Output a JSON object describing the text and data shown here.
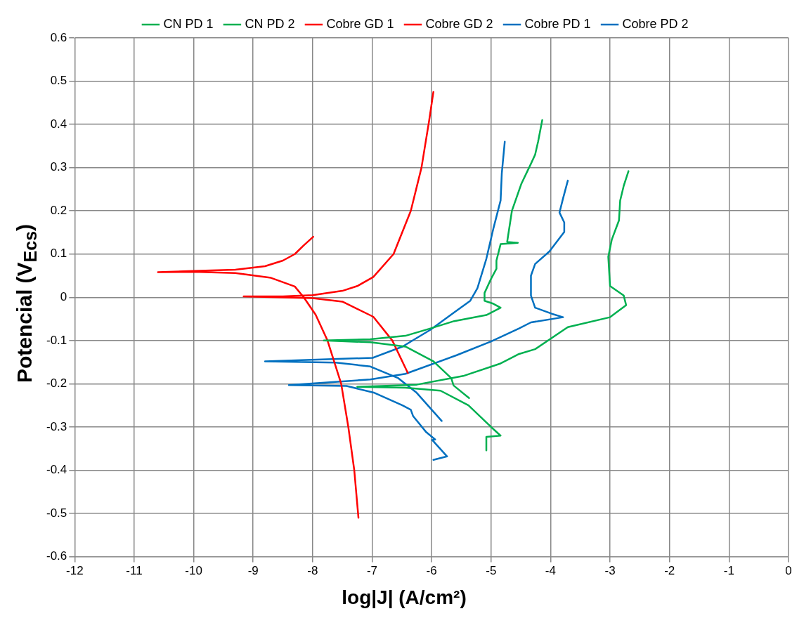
{
  "chart_data": {
    "type": "line",
    "xlabel": "log|J| (A/cm²)",
    "ylabel": "Potencial (V$_{Ecs}$)",
    "xlim": [
      -12,
      0
    ],
    "xticks": [
      -12,
      -11,
      -10,
      -9,
      -8,
      -7,
      -6,
      -5,
      -4,
      -3,
      -2,
      -1,
      0
    ],
    "ylim": [
      -0.6,
      0.6
    ],
    "yticks": [
      -0.6,
      -0.5,
      -0.4,
      -0.3,
      -0.2,
      -0.1,
      0,
      0.1,
      0.2,
      0.3,
      0.4,
      0.5,
      0.6
    ],
    "grid": true,
    "legend": "top",
    "marker": "none",
    "line_style": "solid",
    "series": [
      {
        "name": "CN PD 1",
        "color": "#00b050",
        "x": [
          -5.37,
          -5.63,
          -5.67,
          -5.97,
          -6.44,
          -7.03,
          -7.81,
          -7.03,
          -6.44,
          -6.02,
          -5.62,
          -5.08,
          -4.84,
          -4.96,
          -5.11,
          -5.11,
          -5.0,
          -4.91,
          -4.91,
          -4.84,
          -4.55,
          -4.73,
          -4.65,
          -4.49,
          -4.33,
          -4.26,
          -4.21,
          -4.14
        ],
        "values": [
          -0.233,
          -0.204,
          -0.187,
          -0.148,
          -0.114,
          -0.104,
          -0.1,
          -0.097,
          -0.089,
          -0.072,
          -0.055,
          -0.041,
          -0.024,
          -0.015,
          -0.008,
          0.01,
          0.043,
          0.066,
          0.085,
          0.123,
          0.126,
          0.128,
          0.2,
          0.263,
          0.309,
          0.33,
          0.36,
          0.41
        ]
      },
      {
        "name": "CN PD 2",
        "color": "#00b050",
        "x": [
          -5.08,
          -5.08,
          -4.84,
          -5.0,
          -5.38,
          -5.85,
          -6.44,
          -7.25,
          -6.25,
          -5.47,
          -4.84,
          -4.53,
          -4.26,
          -3.71,
          -3.0,
          -2.73,
          -2.77,
          -3.0,
          -3.03,
          -2.97,
          -2.85,
          -2.83,
          -2.77,
          -2.69
        ],
        "values": [
          -0.354,
          -0.323,
          -0.32,
          -0.3,
          -0.25,
          -0.216,
          -0.209,
          -0.207,
          -0.202,
          -0.182,
          -0.153,
          -0.131,
          -0.12,
          -0.069,
          -0.046,
          -0.018,
          0.004,
          0.026,
          0.094,
          0.134,
          0.178,
          0.224,
          0.258,
          0.292
        ]
      },
      {
        "name": "Cobre GD 1",
        "color": "#ff0000",
        "x": [
          -7.23,
          -7.3,
          -7.4,
          -7.52,
          -7.75,
          -7.95,
          -8.15,
          -8.3,
          -8.7,
          -9.3,
          -10,
          -10.6,
          -10,
          -9.3,
          -8.8,
          -8.5,
          -8.3,
          -8.15,
          -7.99
        ],
        "values": [
          -0.51,
          -0.4,
          -0.3,
          -0.2,
          -0.1,
          -0.04,
          0.0,
          0.025,
          0.045,
          0.056,
          0.059,
          0.058,
          0.061,
          0.064,
          0.072,
          0.085,
          0.1,
          0.12,
          0.14
        ]
      },
      {
        "name": "Cobre GD 2",
        "color": "#ff0000",
        "x": [
          -6.4,
          -6.66,
          -6.98,
          -7.5,
          -8.0,
          -9.16,
          -8.5,
          -8.0,
          -7.5,
          -7.25,
          -6.98,
          -6.64,
          -6.35,
          -6.17,
          -6.04,
          -5.97
        ],
        "values": [
          -0.175,
          -0.1,
          -0.045,
          -0.01,
          -0.002,
          0.002,
          0.002,
          0.005,
          0.015,
          0.026,
          0.047,
          0.1,
          0.2,
          0.3,
          0.41,
          0.475
        ]
      },
      {
        "name": "Cobre PD 1",
        "color": "#0070c0",
        "x": [
          -5.83,
          -6.25,
          -6.56,
          -7.03,
          -7.61,
          -8.8,
          -6.99,
          -6.49,
          -6.02,
          -5.62,
          -5.35,
          -5.23,
          -5.08,
          -4.96,
          -4.84,
          -4.82,
          -4.77
        ],
        "values": [
          -0.286,
          -0.221,
          -0.187,
          -0.16,
          -0.151,
          -0.148,
          -0.14,
          -0.114,
          -0.075,
          -0.035,
          -0.008,
          0.021,
          0.089,
          0.16,
          0.224,
          0.287,
          0.36
        ]
      },
      {
        "name": "Cobre PD 2",
        "color": "#0070c0",
        "x": [
          -5.97,
          -5.74,
          -5.99,
          -5.94,
          -6.09,
          -6.31,
          -6.35,
          -6.49,
          -6.96,
          -7.43,
          -8.4,
          -7.03,
          -6.44,
          -5.58,
          -5.0,
          -4.53,
          -4.33,
          -3.79,
          -3.98,
          -4.26,
          -4.33,
          -4.33,
          -4.26,
          -4.02,
          -3.77,
          -3.77,
          -3.85,
          -3.79,
          -3.71
        ],
        "values": [
          -0.376,
          -0.368,
          -0.33,
          -0.329,
          -0.312,
          -0.275,
          -0.26,
          -0.25,
          -0.221,
          -0.205,
          -0.203,
          -0.19,
          -0.177,
          -0.134,
          -0.102,
          -0.072,
          -0.058,
          -0.046,
          -0.038,
          -0.024,
          0.004,
          0.05,
          0.077,
          0.106,
          0.151,
          0.173,
          0.196,
          0.229,
          0.27
        ]
      }
    ]
  }
}
